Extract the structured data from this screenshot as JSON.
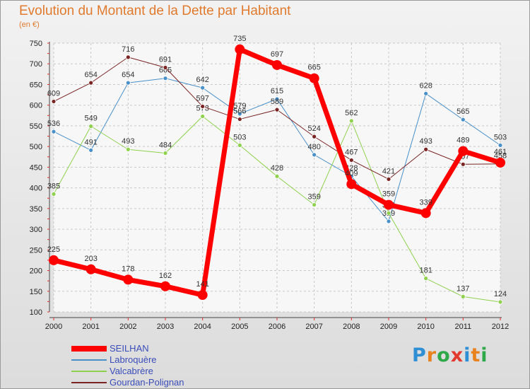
{
  "title": "Evolution du Montant de la Dette par Habitant",
  "subtitle": "(en €)",
  "logo": {
    "text": "Proxiti",
    "colors": [
      "#2e8fd4",
      "#e8821e",
      "#2fa84a",
      "#e23a2e",
      "#2e8fd4",
      "#e8821e",
      "#2fa84a"
    ]
  },
  "chart_data": {
    "type": "line",
    "x": [
      "2000",
      "2001",
      "2002",
      "2003",
      "2004",
      "2005",
      "2006",
      "2007",
      "2008",
      "2009",
      "2010",
      "2011",
      "2012"
    ],
    "ylim": [
      100,
      750
    ],
    "yticks": [
      100,
      150,
      200,
      250,
      300,
      350,
      400,
      450,
      500,
      550,
      600,
      650,
      700,
      750
    ],
    "grid": true,
    "legend_position": "bottom-left",
    "series": [
      {
        "name": "SEILHAN",
        "color": "#ff0000",
        "width": 7,
        "values": [
          225,
          203,
          178,
          162,
          141,
          735,
          697,
          665,
          409,
          359,
          339,
          489,
          461
        ]
      },
      {
        "name": "Labroquère",
        "color": "#4a90c8",
        "width": 1,
        "values": [
          536,
          491,
          654,
          665,
          642,
          579,
          615,
          480,
          428,
          319,
          628,
          565,
          503
        ]
      },
      {
        "name": "Valcabrère",
        "color": "#8fd14f",
        "width": 1,
        "values": [
          385,
          549,
          493,
          484,
          573,
          503,
          428,
          359,
          562,
          339,
          181,
          137,
          124
        ]
      },
      {
        "name": "Gourdan-Polignan",
        "color": "#7a2424",
        "width": 1,
        "values": [
          609,
          654,
          716,
          691,
          597,
          566,
          589,
          524,
          467,
          421,
          493,
          457,
          458
        ]
      }
    ]
  }
}
